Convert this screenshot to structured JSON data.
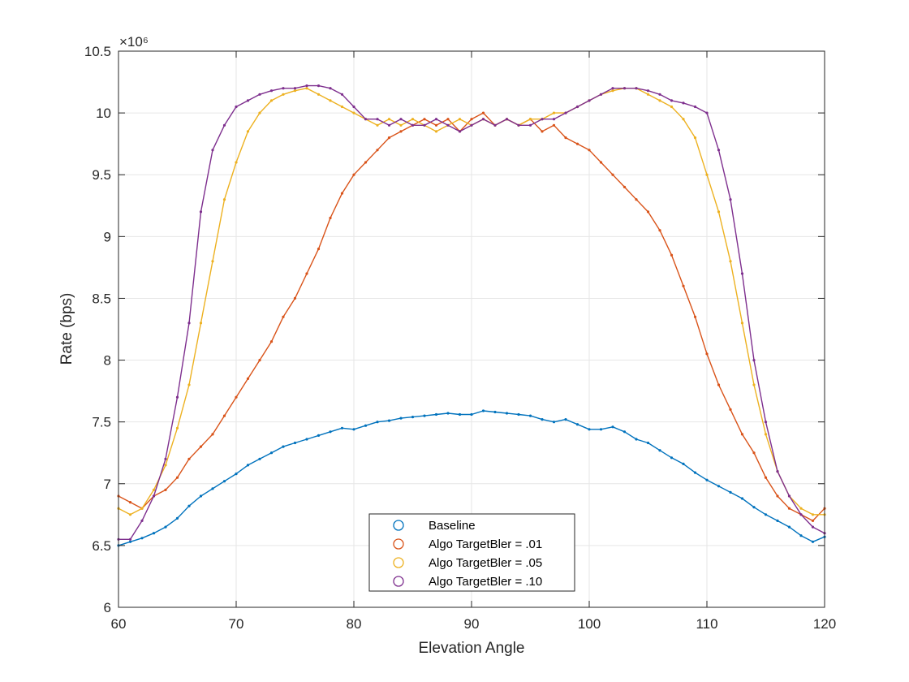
{
  "chart_data": {
    "type": "line",
    "title": "",
    "xlabel": "Elevation Angle",
    "ylabel": "Rate (bps)",
    "xlim": [
      60,
      120
    ],
    "ylim": [
      6000000,
      10500000
    ],
    "y_exponent_label": "×10⁶",
    "xticks": [
      60,
      70,
      80,
      90,
      100,
      110,
      120
    ],
    "yticks": [
      "6",
      "6.5",
      "7",
      "7.5",
      "8",
      "8.5",
      "9",
      "9.5",
      "10",
      "10.5"
    ],
    "grid": true,
    "legend_position": "bottom-center",
    "series": [
      {
        "name": "Baseline",
        "color": "#0072BD",
        "x": [
          60,
          61,
          62,
          63,
          64,
          65,
          66,
          67,
          68,
          69,
          70,
          71,
          72,
          73,
          74,
          75,
          76,
          77,
          78,
          79,
          80,
          81,
          82,
          83,
          84,
          85,
          86,
          87,
          88,
          89,
          90,
          91,
          92,
          93,
          94,
          95,
          96,
          97,
          98,
          99,
          100,
          101,
          102,
          103,
          104,
          105,
          106,
          107,
          108,
          109,
          110,
          111,
          112,
          113,
          114,
          115,
          116,
          117,
          118,
          119,
          120
        ],
        "values": [
          6500000,
          6530000,
          6560000,
          6600000,
          6650000,
          6720000,
          6820000,
          6900000,
          6960000,
          7020000,
          7080000,
          7150000,
          7200000,
          7250000,
          7300000,
          7330000,
          7360000,
          7390000,
          7420000,
          7450000,
          7440000,
          7470000,
          7500000,
          7510000,
          7530000,
          7540000,
          7550000,
          7560000,
          7570000,
          7560000,
          7560000,
          7590000,
          7580000,
          7570000,
          7560000,
          7550000,
          7520000,
          7500000,
          7520000,
          7480000,
          7440000,
          7440000,
          7460000,
          7420000,
          7360000,
          7330000,
          7270000,
          7210000,
          7160000,
          7090000,
          7030000,
          6980000,
          6930000,
          6880000,
          6810000,
          6750000,
          6700000,
          6650000,
          6580000,
          6530000,
          6570000
        ]
      },
      {
        "name": "Algo TargetBler = .01",
        "color": "#D95319",
        "x": [
          60,
          61,
          62,
          63,
          64,
          65,
          66,
          67,
          68,
          69,
          70,
          71,
          72,
          73,
          74,
          75,
          76,
          77,
          78,
          79,
          80,
          81,
          82,
          83,
          84,
          85,
          86,
          87,
          88,
          89,
          90,
          91,
          92,
          93,
          94,
          95,
          96,
          97,
          98,
          99,
          100,
          101,
          102,
          103,
          104,
          105,
          106,
          107,
          108,
          109,
          110,
          111,
          112,
          113,
          114,
          115,
          116,
          117,
          118,
          119,
          120
        ],
        "values": [
          6900000,
          6850000,
          6800000,
          6900000,
          6950000,
          7050000,
          7200000,
          7300000,
          7400000,
          7550000,
          7700000,
          7850000,
          8000000,
          8150000,
          8350000,
          8500000,
          8700000,
          8900000,
          9150000,
          9350000,
          9500000,
          9600000,
          9700000,
          9800000,
          9850000,
          9900000,
          9950000,
          9900000,
          9950000,
          9850000,
          9950000,
          10000000,
          9900000,
          9950000,
          9900000,
          9950000,
          9850000,
          9900000,
          9800000,
          9750000,
          9700000,
          9600000,
          9500000,
          9400000,
          9300000,
          9200000,
          9050000,
          8850000,
          8600000,
          8350000,
          8050000,
          7800000,
          7600000,
          7400000,
          7250000,
          7050000,
          6900000,
          6800000,
          6750000,
          6700000,
          6800000
        ]
      },
      {
        "name": "Algo TargetBler = .05",
        "color": "#EDB120",
        "x": [
          60,
          61,
          62,
          63,
          64,
          65,
          66,
          67,
          68,
          69,
          70,
          71,
          72,
          73,
          74,
          75,
          76,
          77,
          78,
          79,
          80,
          81,
          82,
          83,
          84,
          85,
          86,
          87,
          88,
          89,
          90,
          91,
          92,
          93,
          94,
          95,
          96,
          97,
          98,
          99,
          100,
          101,
          102,
          103,
          104,
          105,
          106,
          107,
          108,
          109,
          110,
          111,
          112,
          113,
          114,
          115,
          116,
          117,
          118,
          119,
          120
        ],
        "values": [
          6800000,
          6750000,
          6800000,
          6950000,
          7150000,
          7450000,
          7800000,
          8300000,
          8800000,
          9300000,
          9600000,
          9850000,
          10000000,
          10100000,
          10150000,
          10180000,
          10200000,
          10150000,
          10100000,
          10050000,
          10000000,
          9950000,
          9900000,
          9950000,
          9900000,
          9950000,
          9900000,
          9850000,
          9900000,
          9950000,
          9900000,
          9950000,
          9900000,
          9950000,
          9900000,
          9950000,
          9950000,
          10000000,
          10000000,
          10050000,
          10100000,
          10150000,
          10180000,
          10200000,
          10200000,
          10150000,
          10100000,
          10050000,
          9950000,
          9800000,
          9500000,
          9200000,
          8800000,
          8300000,
          7800000,
          7400000,
          7100000,
          6900000,
          6800000,
          6750000,
          6750000
        ]
      },
      {
        "name": "Algo TargetBler = .10",
        "color": "#7E2F8E",
        "x": [
          60,
          61,
          62,
          63,
          64,
          65,
          66,
          67,
          68,
          69,
          70,
          71,
          72,
          73,
          74,
          75,
          76,
          77,
          78,
          79,
          80,
          81,
          82,
          83,
          84,
          85,
          86,
          87,
          88,
          89,
          90,
          91,
          92,
          93,
          94,
          95,
          96,
          97,
          98,
          99,
          100,
          101,
          102,
          103,
          104,
          105,
          106,
          107,
          108,
          109,
          110,
          111,
          112,
          113,
          114,
          115,
          116,
          117,
          118,
          119,
          120
        ],
        "values": [
          6550000,
          6550000,
          6700000,
          6900000,
          7200000,
          7700000,
          8300000,
          9200000,
          9700000,
          9900000,
          10050000,
          10100000,
          10150000,
          10180000,
          10200000,
          10200000,
          10220000,
          10220000,
          10200000,
          10150000,
          10050000,
          9950000,
          9950000,
          9900000,
          9950000,
          9900000,
          9900000,
          9950000,
          9900000,
          9850000,
          9900000,
          9950000,
          9900000,
          9950000,
          9900000,
          9900000,
          9950000,
          9950000,
          10000000,
          10050000,
          10100000,
          10150000,
          10200000,
          10200000,
          10200000,
          10180000,
          10150000,
          10100000,
          10080000,
          10050000,
          10000000,
          9700000,
          9300000,
          8700000,
          8000000,
          7500000,
          7100000,
          6900000,
          6750000,
          6650000,
          6600000
        ]
      }
    ]
  }
}
